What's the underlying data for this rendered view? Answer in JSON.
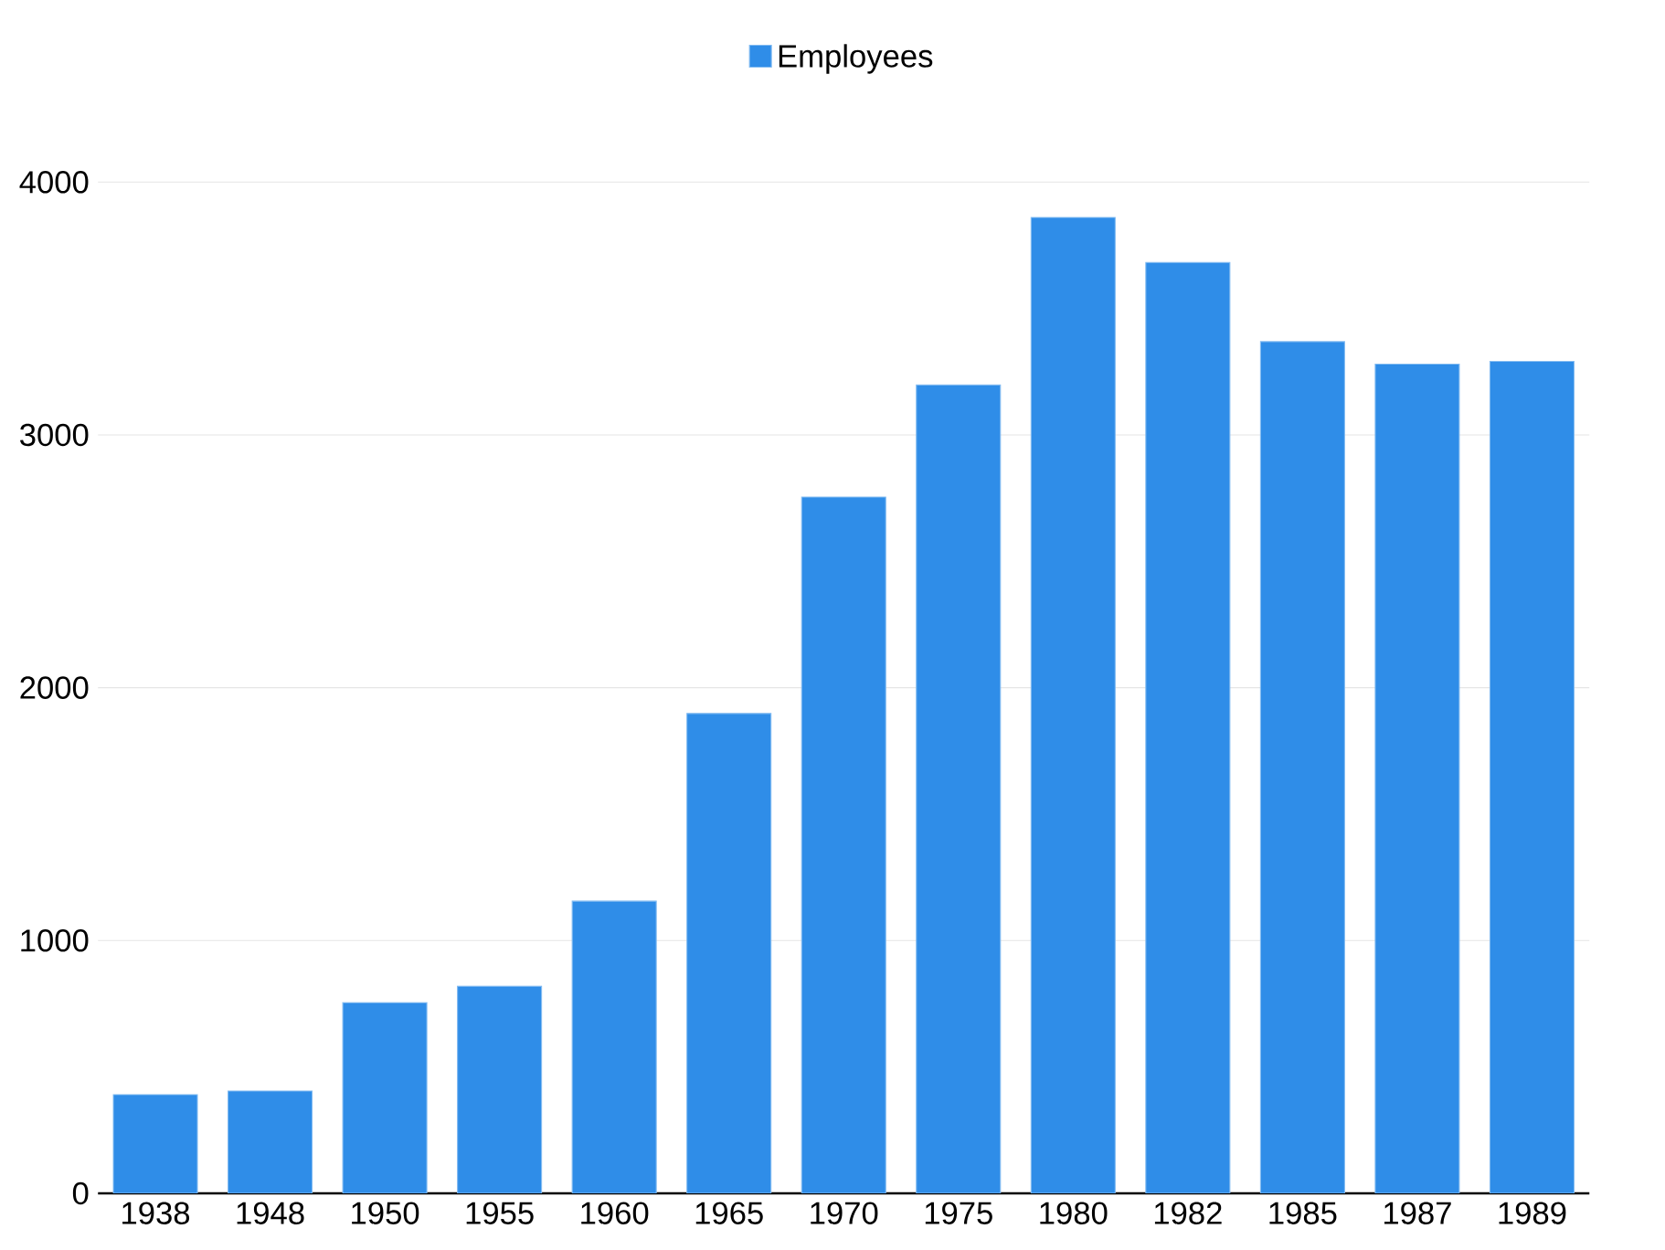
{
  "chart_data": {
    "type": "bar",
    "categories": [
      "1938",
      "1948",
      "1950",
      "1955",
      "1960",
      "1965",
      "1970",
      "1975",
      "1980",
      "1982",
      "1985",
      "1987",
      "1989"
    ],
    "series": [
      {
        "name": "Employees",
        "color": "#2f8de8",
        "values": [
          390,
          405,
          754,
          819,
          1156,
          1898,
          2754,
          3198,
          3860,
          3682,
          3369,
          3280,
          3291
        ]
      }
    ],
    "ylim": [
      0,
      4000
    ],
    "yticks": [
      0,
      1000,
      2000,
      3000,
      4000
    ],
    "grid": "y",
    "legend": "top"
  }
}
